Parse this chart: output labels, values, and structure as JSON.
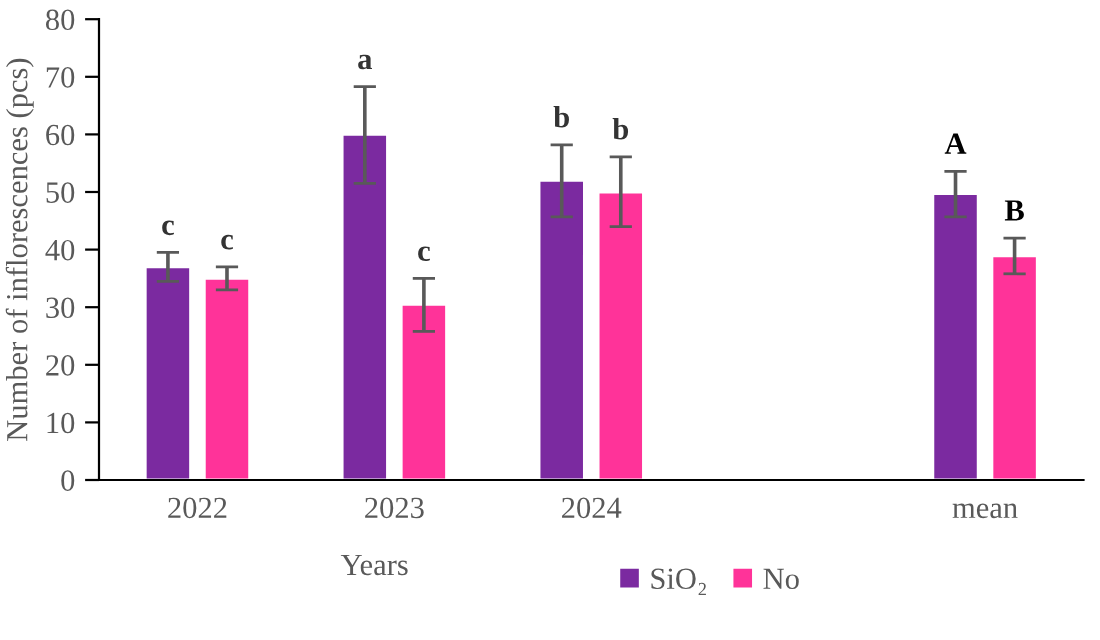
{
  "chart_data": {
    "type": "bar",
    "xlabel": "Years",
    "ylabel": "Number of inflorescences (pcs)",
    "categories": [
      "2022",
      "2023",
      "2024",
      null,
      "mean"
    ],
    "series": [
      {
        "name": "SiO₂",
        "color": "#7b2aa0",
        "values": [
          37,
          60,
          52,
          null,
          49.7
        ],
        "errors": [
          [
            34.5,
            39.5
          ],
          [
            51.5,
            68.3
          ],
          [
            45.7,
            58.2
          ],
          null,
          [
            45.7,
            53.6
          ]
        ]
      },
      {
        "name": "No",
        "color": "#ff3399",
        "values": [
          35,
          30.5,
          50,
          null,
          38.9
        ],
        "errors": [
          [
            33,
            37
          ],
          [
            25.8,
            35
          ],
          [
            44,
            56.1
          ],
          null,
          [
            35.8,
            42
          ]
        ]
      }
    ],
    "ylim": [
      0,
      80
    ],
    "yticks": [
      0,
      10,
      20,
      30,
      40,
      50,
      60,
      70,
      80
    ],
    "grid": false,
    "legend": "bottom",
    "annotations": [
      "c",
      "c",
      "a",
      "c",
      "b",
      "b",
      "A",
      "B"
    ]
  }
}
